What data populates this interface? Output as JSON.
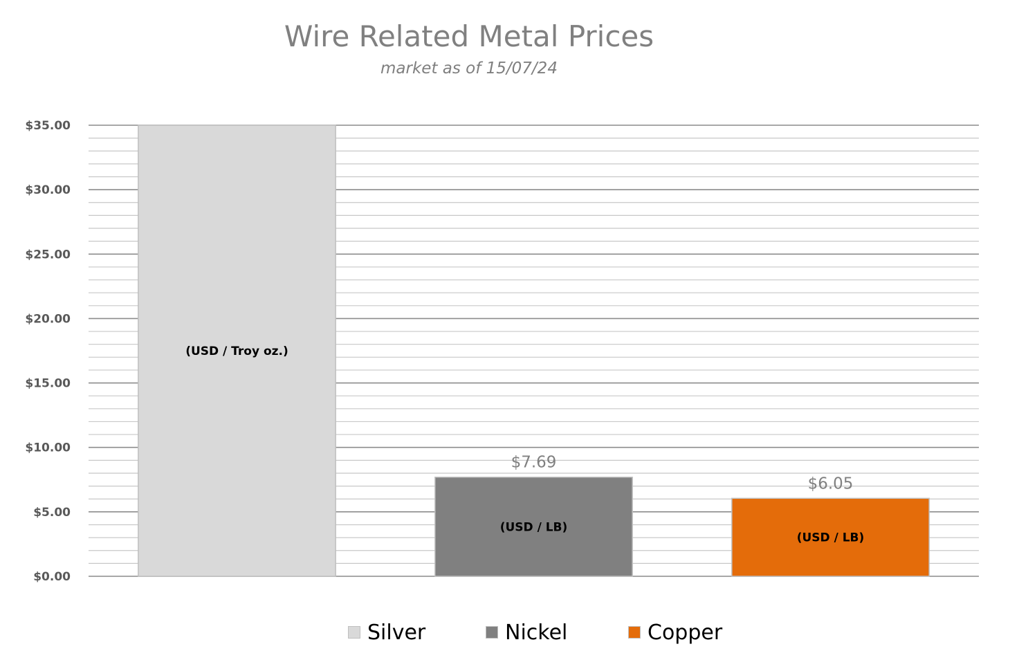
{
  "chart_data": {
    "type": "bar",
    "title": "Wire Related Metal Prices",
    "subtitle": "market as of 15/07/24",
    "categories": [
      "Silver",
      "Nickel",
      "Copper"
    ],
    "values": [
      35.0,
      7.69,
      6.05
    ],
    "colors": [
      "#d9d9d9",
      "#808080",
      "#e46c0a"
    ],
    "unit_labels": [
      "(USD / Troy oz.)",
      "(USD / LB)",
      "(USD / LB)"
    ],
    "data_labels": [
      "",
      "$7.69",
      "$6.05"
    ],
    "ylim": [
      0,
      35
    ],
    "y_ticks": [
      "$0.00",
      "$5.00",
      "$10.00",
      "$15.00",
      "$20.00",
      "$25.00",
      "$30.00",
      "$35.00"
    ],
    "y_tick_values": [
      0,
      5,
      10,
      15,
      20,
      25,
      30,
      35
    ],
    "minor_grid_step": 1,
    "grid": true,
    "legend_position": "bottom",
    "xlabel": "",
    "ylabel": ""
  }
}
